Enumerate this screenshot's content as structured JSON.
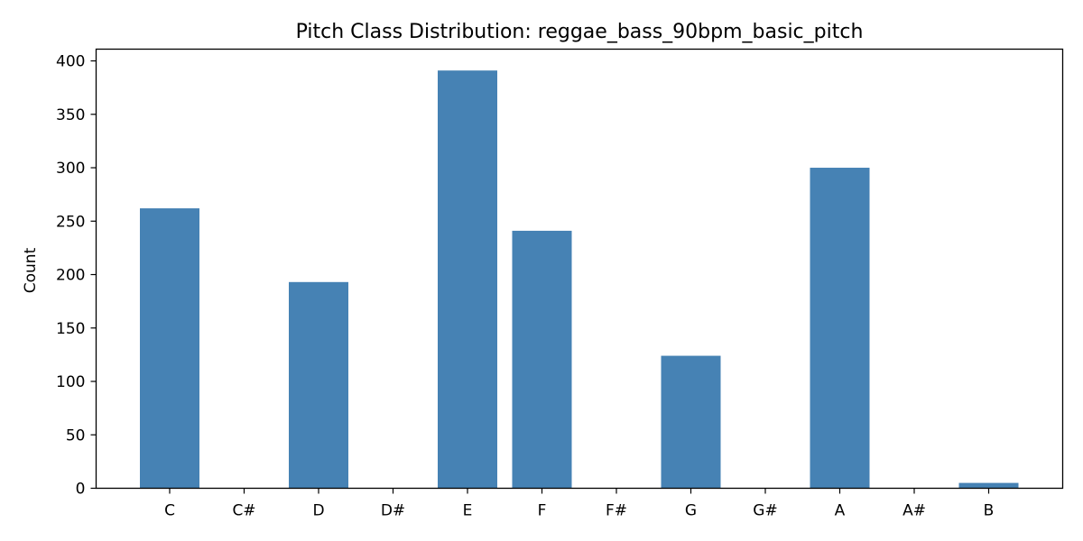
{
  "chart_data": {
    "type": "bar",
    "title": "Pitch Class Distribution: reggae_bass_90bpm_basic_pitch",
    "xlabel": "",
    "ylabel": "Count",
    "categories": [
      "C",
      "C#",
      "D",
      "D#",
      "E",
      "F",
      "F#",
      "G",
      "G#",
      "A",
      "A#",
      "B"
    ],
    "values": [
      262,
      0,
      193,
      0,
      391,
      241,
      0,
      124,
      0,
      300,
      0,
      5
    ],
    "ylim": [
      0,
      411
    ],
    "yticks": [
      0,
      50,
      100,
      150,
      200,
      250,
      300,
      350,
      400
    ],
    "bar_color": "#4682b4",
    "grid": false,
    "legend": false
  }
}
